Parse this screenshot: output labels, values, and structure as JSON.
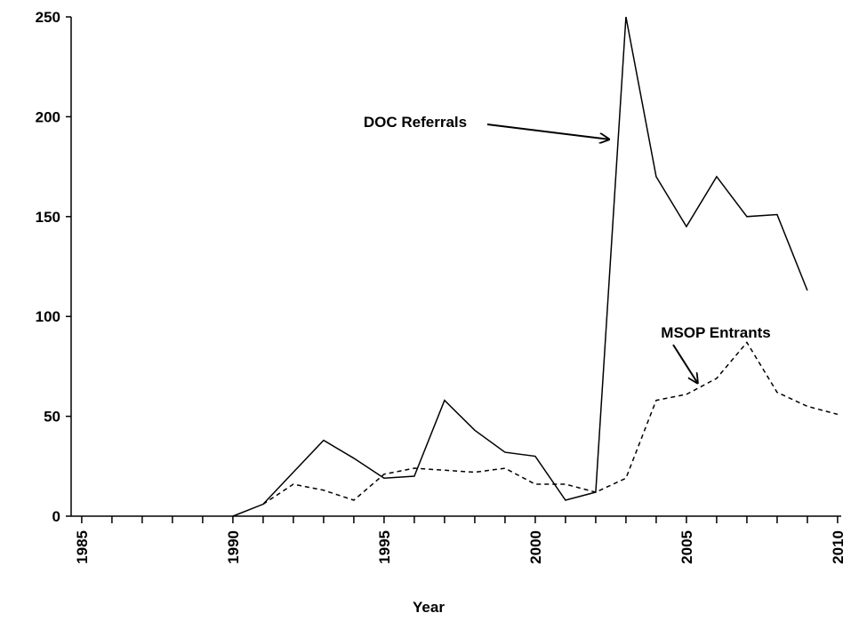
{
  "chart_data": {
    "type": "line",
    "x_label": "Year",
    "x": [
      1985,
      1986,
      1987,
      1988,
      1989,
      1990,
      1991,
      1992,
      1993,
      1994,
      1995,
      1996,
      1997,
      1998,
      1999,
      2000,
      2001,
      2002,
      2003,
      2004,
      2005,
      2006,
      2007,
      2008,
      2009,
      2010
    ],
    "series": [
      {
        "name": "DOC Referrals",
        "color": "#000000",
        "dash": "solid",
        "values": [
          null,
          null,
          null,
          null,
          null,
          0,
          6,
          22,
          38,
          29,
          19,
          20,
          58,
          43,
          32,
          30,
          8,
          12,
          250,
          170,
          145,
          170,
          150,
          151,
          113,
          null
        ]
      },
      {
        "name": "MSOP Entrants",
        "color": "#000000",
        "dash": "dashed",
        "values": [
          null,
          null,
          null,
          null,
          null,
          null,
          6,
          16,
          13,
          8,
          21,
          24,
          23,
          22,
          24,
          16,
          16,
          12,
          19,
          58,
          61,
          69,
          87,
          62,
          55,
          51
        ]
      }
    ],
    "xlim": [
      1984.65,
      2010.12
    ],
    "xticks": [
      1985,
      1990,
      1995,
      2000,
      2005,
      2010
    ],
    "xminorticks": [
      1986,
      1987,
      1988,
      1989,
      1991,
      1992,
      1993,
      1994,
      1996,
      1997,
      1998,
      1999,
      2001,
      2002,
      2003,
      2004,
      2006,
      2007,
      2008,
      2009
    ],
    "ylim": [
      0,
      250
    ],
    "yticks": [
      0,
      50,
      100,
      150,
      200,
      250
    ],
    "grid": false,
    "legend": "annotations"
  }
}
